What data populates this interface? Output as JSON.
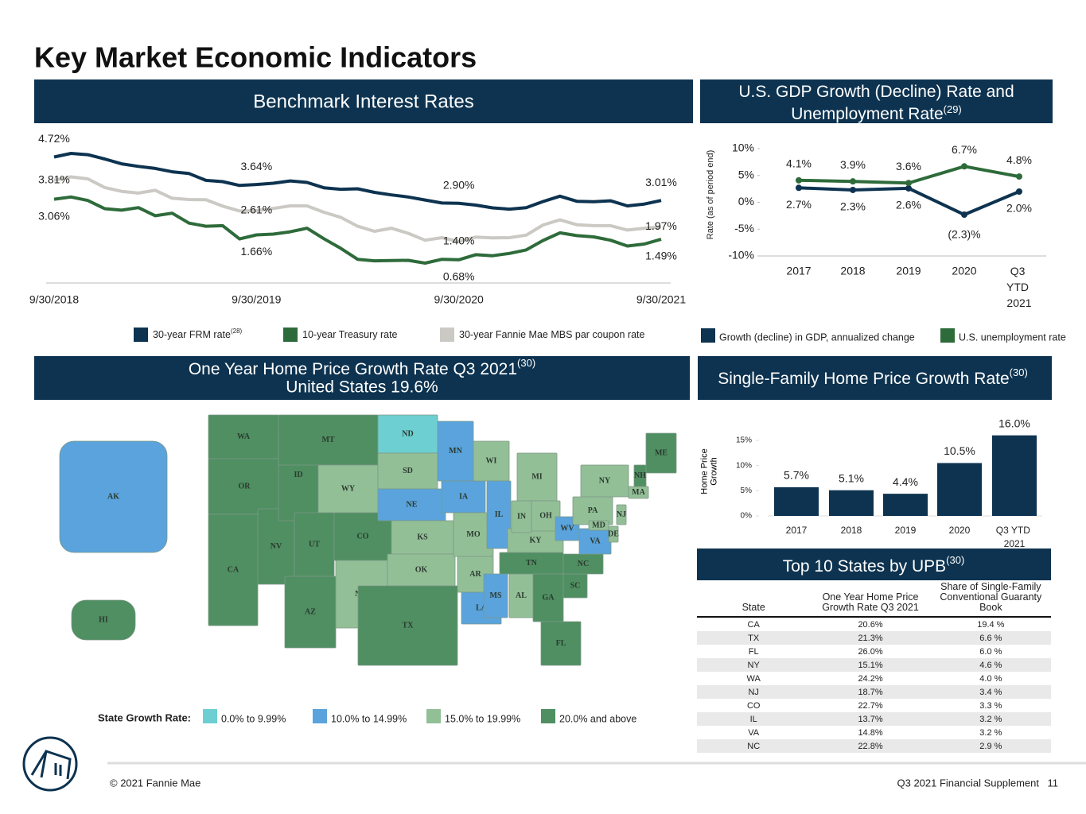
{
  "title": "Key Market Economic Indicators",
  "chart_data": [
    {
      "type": "line",
      "title": "Benchmark Interest Rates",
      "categories": [
        "9/30/2018",
        null,
        null,
        null,
        null,
        null,
        null,
        null,
        null,
        null,
        null,
        null,
        "9/30/2019",
        null,
        null,
        null,
        null,
        null,
        null,
        null,
        null,
        null,
        null,
        null,
        "9/30/2020",
        null,
        null,
        null,
        null,
        null,
        null,
        null,
        null,
        null,
        null,
        null,
        "9/30/2021"
      ],
      "series": [
        {
          "name": "30-year FRM rate",
          "note": "(28)",
          "color": "#0d3350",
          "values": [
            4.72,
            4.86,
            4.81,
            4.64,
            4.45,
            4.35,
            4.27,
            4.14,
            4.07,
            3.8,
            3.75,
            3.6,
            3.64,
            3.69,
            3.78,
            3.72,
            3.51,
            3.45,
            3.47,
            3.33,
            3.23,
            3.15,
            3.03,
            2.91,
            2.9,
            2.83,
            2.72,
            2.67,
            2.73,
            2.97,
            3.18,
            2.98,
            2.96,
            3.0,
            2.8,
            2.87,
            3.01
          ],
          "value_labels": [
            "4.72%",
            null,
            null,
            null,
            null,
            null,
            null,
            null,
            null,
            null,
            null,
            null,
            "3.64%",
            null,
            null,
            null,
            null,
            null,
            null,
            null,
            null,
            null,
            null,
            null,
            "2.90%",
            null,
            null,
            null,
            null,
            null,
            null,
            null,
            null,
            null,
            null,
            null,
            "3.01%"
          ]
        },
        {
          "name": "10-year Treasury rate",
          "color": "#2e6b3a",
          "values": [
            3.06,
            3.15,
            3.01,
            2.69,
            2.63,
            2.73,
            2.41,
            2.51,
            2.12,
            2.0,
            2.02,
            1.5,
            1.66,
            1.69,
            1.78,
            1.92,
            1.51,
            1.13,
            0.7,
            0.64,
            0.65,
            0.66,
            0.55,
            0.7,
            0.68,
            0.88,
            0.84,
            0.93,
            1.07,
            1.44,
            1.74,
            1.63,
            1.58,
            1.45,
            1.22,
            1.3,
            1.49
          ],
          "value_labels": [
            "3.06%",
            null,
            null,
            null,
            null,
            null,
            null,
            null,
            null,
            null,
            null,
            null,
            "1.66%",
            null,
            null,
            null,
            null,
            null,
            null,
            null,
            null,
            null,
            null,
            null,
            "0.68%",
            null,
            null,
            null,
            null,
            null,
            null,
            null,
            null,
            null,
            null,
            null,
            "1.49%"
          ]
        },
        {
          "name": "30-year Fannie Mae MBS par coupon rate",
          "color": "#cbc9c4",
          "values": [
            3.81,
            3.94,
            3.86,
            3.52,
            3.37,
            3.3,
            3.41,
            3.1,
            3.05,
            3.04,
            2.79,
            2.6,
            2.61,
            2.7,
            2.8,
            2.8,
            2.55,
            2.35,
            2.0,
            1.8,
            1.92,
            1.72,
            1.45,
            1.55,
            1.4,
            1.57,
            1.54,
            1.55,
            1.65,
            2.05,
            2.25,
            2.06,
            2.02,
            2.02,
            1.85,
            1.92,
            1.97
          ],
          "value_labels": [
            "3.81%",
            null,
            null,
            null,
            null,
            null,
            null,
            null,
            null,
            null,
            null,
            null,
            "2.61%",
            null,
            null,
            null,
            null,
            null,
            null,
            null,
            null,
            null,
            null,
            null,
            "1.40%",
            null,
            null,
            null,
            null,
            null,
            null,
            null,
            null,
            null,
            null,
            null,
            "1.97%"
          ]
        }
      ]
    },
    {
      "type": "line",
      "title": "U.S. GDP Growth (Decline) Rate and Unemployment Rate",
      "note": "(29)",
      "y_label": "Rate (as of period end)",
      "categories": [
        "2017",
        "2018",
        "2019",
        "2020",
        "Q3 YTD 2021"
      ],
      "ylim": [
        -10,
        10
      ],
      "yticks": [
        {
          "value": 10,
          "label": "10%"
        },
        {
          "value": 5,
          "label": "5%"
        },
        {
          "value": 0,
          "label": "0%"
        },
        {
          "value": -5,
          "label": "-5%"
        },
        {
          "value": -10,
          "label": "-10%"
        }
      ],
      "series": [
        {
          "name": "Growth (decline) in GDP, annualized change",
          "color": "#0d3350",
          "values": [
            2.7,
            2.3,
            2.6,
            -2.3,
            2.0
          ],
          "value_labels": [
            "2.7%",
            "2.3%",
            "2.6%",
            "(2.3)%",
            "2.0%"
          ]
        },
        {
          "name": "U.S. unemployment rate",
          "color": "#2e6b3a",
          "values": [
            4.1,
            3.9,
            3.6,
            6.7,
            4.8
          ],
          "value_labels": [
            "4.1%",
            "3.9%",
            "3.6%",
            "6.7%",
            "4.8%"
          ]
        }
      ]
    },
    {
      "type": "bar",
      "title": "Single-Family Home Price Growth Rate",
      "note": "(30)",
      "y_label": "Home Price Growth",
      "categories": [
        "2017",
        "2018",
        "2019",
        "2020",
        "Q3 YTD 2021"
      ],
      "values": [
        5.7,
        5.1,
        4.4,
        10.5,
        16.0
      ],
      "value_labels": [
        "5.7%",
        "5.1%",
        "4.4%",
        "10.5%",
        "16.0%"
      ],
      "color": "#0d3350",
      "ylim": [
        0,
        16
      ],
      "yticks": [
        {
          "value": 0,
          "label": "0%"
        },
        {
          "value": 5,
          "label": "5%"
        },
        {
          "value": 10,
          "label": "10%"
        },
        {
          "value": 15,
          "label": "15%"
        }
      ]
    }
  ],
  "map": {
    "title": "One Year Home Price Growth Rate Q3 2021",
    "note": "(30)",
    "subtitle": "United States 19.6%",
    "legend_title": "State Growth Rate:",
    "classes": [
      {
        "label": "0.0% to 9.99%",
        "color": "#6dcfd1"
      },
      {
        "label": "10.0% to 14.99%",
        "color": "#5aa3dc"
      },
      {
        "label": "15.0% to 19.99%",
        "color": "#93bf97"
      },
      {
        "label": "20.0% and above",
        "color": "#4f8f62"
      }
    ],
    "states": [
      {
        "label": "WA",
        "color": "#4f8f62"
      },
      {
        "label": "OR",
        "color": "#4f8f62"
      },
      {
        "label": "CA",
        "color": "#4f8f62"
      },
      {
        "label": "NV",
        "color": "#4f8f62"
      },
      {
        "label": "ID",
        "color": "#4f8f62"
      },
      {
        "label": "MT",
        "color": "#4f8f62"
      },
      {
        "label": "WY",
        "color": "#93bf97"
      },
      {
        "label": "UT",
        "color": "#4f8f62"
      },
      {
        "label": "CO",
        "color": "#4f8f62"
      },
      {
        "label": "AZ",
        "color": "#4f8f62"
      },
      {
        "label": "NM",
        "color": "#93bf97"
      },
      {
        "label": "ND",
        "color": "#6dcfd1"
      },
      {
        "label": "SD",
        "color": "#93bf97"
      },
      {
        "label": "NE",
        "color": "#5aa3dc"
      },
      {
        "label": "KS",
        "color": "#93bf97"
      },
      {
        "label": "OK",
        "color": "#93bf97"
      },
      {
        "label": "TX",
        "color": "#4f8f62"
      },
      {
        "label": "MN",
        "color": "#5aa3dc"
      },
      {
        "label": "IA",
        "color": "#5aa3dc"
      },
      {
        "label": "MO",
        "color": "#93bf97"
      },
      {
        "label": "AR",
        "color": "#93bf97"
      },
      {
        "label": "LA",
        "color": "#5aa3dc"
      },
      {
        "label": "WI",
        "color": "#93bf97"
      },
      {
        "label": "IL",
        "color": "#5aa3dc"
      },
      {
        "label": "MS",
        "color": "#5aa3dc"
      },
      {
        "label": "AL",
        "color": "#93bf97"
      },
      {
        "label": "TN",
        "color": "#4f8f62"
      },
      {
        "label": "KY",
        "color": "#93bf97"
      },
      {
        "label": "IN",
        "color": "#93bf97"
      },
      {
        "label": "MI",
        "color": "#93bf97"
      },
      {
        "label": "OH",
        "color": "#93bf97"
      },
      {
        "label": "GA",
        "color": "#4f8f62"
      },
      {
        "label": "FL",
        "color": "#4f8f62"
      },
      {
        "label": "SC",
        "color": "#4f8f62"
      },
      {
        "label": "NC",
        "color": "#4f8f62"
      },
      {
        "label": "VA",
        "color": "#5aa3dc"
      },
      {
        "label": "WV",
        "color": "#5aa3dc"
      },
      {
        "label": "PA",
        "color": "#93bf97"
      },
      {
        "label": "NY",
        "color": "#93bf97"
      },
      {
        "label": "NJ",
        "color": "#93bf97"
      },
      {
        "label": "DE",
        "color": "#93bf97"
      },
      {
        "label": "MD",
        "color": "#93bf97"
      },
      {
        "label": "MA",
        "color": "#93bf97"
      },
      {
        "label": "NH",
        "color": "#4f8f62"
      },
      {
        "label": "ME",
        "color": "#4f8f62"
      },
      {
        "label": "AK",
        "color": "#5aa3dc"
      },
      {
        "label": "HI",
        "color": "#4f8f62"
      }
    ]
  },
  "table": {
    "title": "Top 10 States by UPB",
    "note": "(30)",
    "headers": [
      "State",
      "One Year Home Price Growth Rate Q3 2021",
      "Share of Single-Family Conventional Guaranty Book"
    ],
    "rows": [
      [
        "CA",
        "20.6%",
        "19.4 %"
      ],
      [
        "TX",
        "21.3%",
        "6.6 %"
      ],
      [
        "FL",
        "26.0%",
        "6.0 %"
      ],
      [
        "NY",
        "15.1%",
        "4.6 %"
      ],
      [
        "WA",
        "24.2%",
        "4.0 %"
      ],
      [
        "NJ",
        "18.7%",
        "3.4 %"
      ],
      [
        "CO",
        "22.7%",
        "3.3 %"
      ],
      [
        "IL",
        "13.7%",
        "3.2 %"
      ],
      [
        "VA",
        "14.8%",
        "3.2 %"
      ],
      [
        "NC",
        "22.8%",
        "2.9 %"
      ]
    ]
  },
  "footer": {
    "copyright": "© 2021 Fannie Mae",
    "document": "Q3 2021 Financial Supplement",
    "page": "11"
  }
}
